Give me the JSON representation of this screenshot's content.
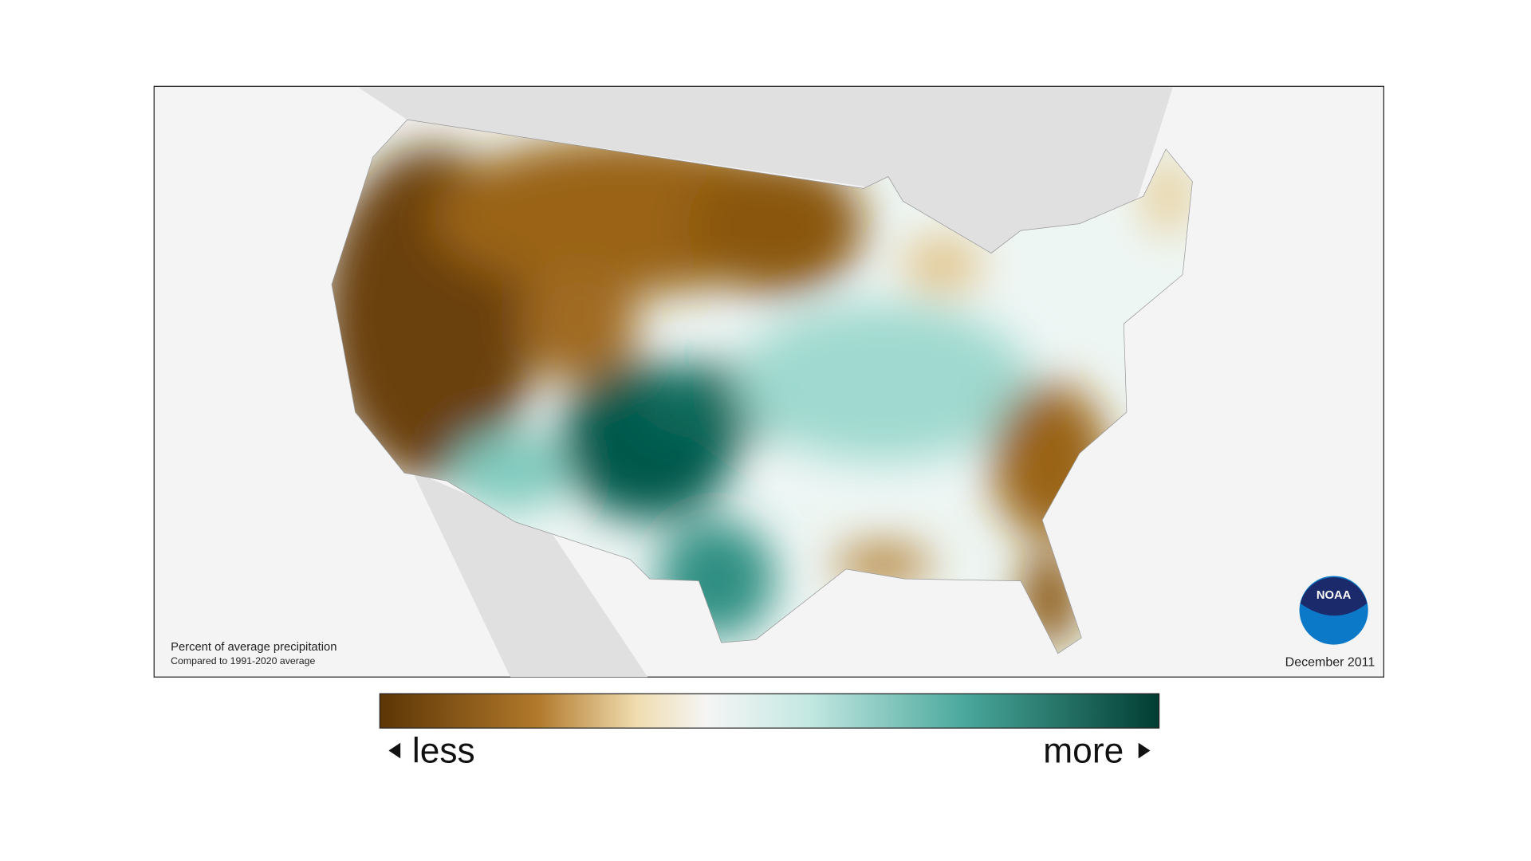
{
  "map": {
    "caption": {
      "title": "Percent of average precipitation",
      "subtitle": "Compared to 1991-2020 average"
    },
    "date": "December 2011",
    "logo": "NOAA"
  },
  "legend": {
    "low_label": "less",
    "high_label": "more"
  }
}
